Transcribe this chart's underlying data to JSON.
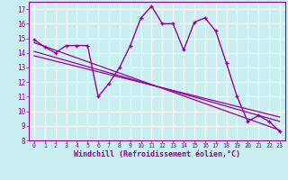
{
  "title": "",
  "xlabel": "Windchill (Refroidissement éolien,°C)",
  "ylabel": "",
  "background_color": "#c8eef0",
  "grid_color": "#ffffff",
  "line_color": "#990099",
  "xlim": [
    -0.5,
    23.5
  ],
  "ylim": [
    8,
    17.5
  ],
  "yticks": [
    8,
    9,
    10,
    11,
    12,
    13,
    14,
    15,
    16,
    17
  ],
  "xticks": [
    0,
    1,
    2,
    3,
    4,
    5,
    6,
    7,
    8,
    9,
    10,
    11,
    12,
    13,
    14,
    15,
    16,
    17,
    18,
    19,
    20,
    21,
    22,
    23
  ],
  "main_data_x": [
    0,
    1,
    2,
    3,
    4,
    5,
    6,
    7,
    8,
    9,
    10,
    11,
    12,
    13,
    14,
    15,
    16,
    17,
    18,
    19,
    20,
    21,
    22,
    23
  ],
  "main_data_y": [
    14.9,
    14.4,
    14.0,
    14.5,
    14.5,
    14.5,
    11.0,
    11.9,
    13.0,
    14.5,
    16.4,
    17.2,
    16.0,
    16.0,
    14.2,
    16.1,
    16.4,
    15.5,
    13.3,
    11.0,
    9.3,
    9.7,
    9.3,
    8.6
  ],
  "reg_line1_x": [
    0,
    23
  ],
  "reg_line1_y": [
    14.7,
    8.7
  ],
  "reg_line2_x": [
    0,
    23
  ],
  "reg_line2_y": [
    14.1,
    9.3
  ],
  "reg_line3_x": [
    0,
    23
  ],
  "reg_line3_y": [
    13.8,
    9.6
  ]
}
